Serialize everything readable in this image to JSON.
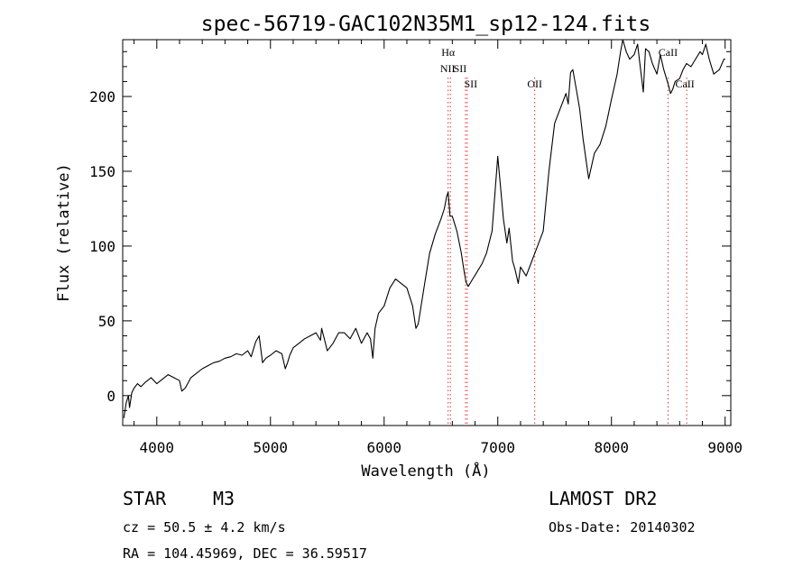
{
  "chart_data": {
    "type": "line",
    "title": "spec-56719-GAC102N35M1_sp12-124.fits",
    "xlabel": "Wavelength (Å)",
    "ylabel": "Flux (relative)",
    "xlim": [
      3700,
      9050
    ],
    "ylim": [
      -20,
      238
    ],
    "xticks": [
      4000,
      5000,
      6000,
      7000,
      8000,
      9000
    ],
    "yticks": [
      0,
      50,
      100,
      150,
      200
    ],
    "grid": false,
    "line_color": "#000000",
    "marker_color": "#e03030",
    "series": [
      {
        "name": "flux",
        "x": [
          3710,
          3730,
          3750,
          3760,
          3780,
          3800,
          3830,
          3860,
          3900,
          3950,
          4000,
          4050,
          4100,
          4150,
          4200,
          4220,
          4250,
          4300,
          4350,
          4400,
          4450,
          4500,
          4550,
          4600,
          4650,
          4700,
          4750,
          4800,
          4830,
          4870,
          4900,
          4930,
          4960,
          5000,
          5050,
          5100,
          5130,
          5150,
          5170,
          5200,
          5250,
          5300,
          5350,
          5400,
          5440,
          5450,
          5500,
          5550,
          5600,
          5650,
          5700,
          5750,
          5800,
          5850,
          5880,
          5900,
          5920,
          5950,
          6000,
          6050,
          6100,
          6150,
          6200,
          6250,
          6280,
          6300,
          6350,
          6400,
          6450,
          6500,
          6530,
          6550,
          6563,
          6580,
          6600,
          6640,
          6680,
          6700,
          6720,
          6740,
          6780,
          6820,
          6860,
          6900,
          6950,
          7000,
          7050,
          7080,
          7100,
          7130,
          7150,
          7180,
          7200,
          7250,
          7300,
          7350,
          7400,
          7450,
          7500,
          7550,
          7580,
          7600,
          7620,
          7640,
          7660,
          7690,
          7720,
          7750,
          7800,
          7850,
          7900,
          7950,
          8000,
          8050,
          8080,
          8100,
          8130,
          8160,
          8200,
          8230,
          8250,
          8280,
          8300,
          8330,
          8360,
          8400,
          8430,
          8460,
          8500,
          8520,
          8540,
          8560,
          8600,
          8630,
          8660,
          8700,
          8740,
          8780,
          8800,
          8830,
          8860,
          8900,
          8950,
          8990,
          9000
        ],
        "values": [
          -15,
          -5,
          0,
          -8,
          2,
          5,
          8,
          6,
          9,
          12,
          8,
          11,
          14,
          12,
          10,
          3,
          5,
          12,
          15,
          18,
          20,
          22,
          23,
          25,
          26,
          28,
          27,
          30,
          26,
          36,
          40,
          22,
          25,
          27,
          30,
          28,
          18,
          22,
          27,
          32,
          35,
          38,
          40,
          42,
          37,
          45,
          30,
          35,
          42,
          42,
          38,
          45,
          35,
          42,
          38,
          25,
          45,
          55,
          60,
          72,
          78,
          75,
          72,
          60,
          45,
          48,
          72,
          95,
          108,
          118,
          125,
          133,
          136,
          120,
          120,
          110,
          95,
          85,
          76,
          73,
          78,
          83,
          88,
          95,
          110,
          160,
          118,
          102,
          112,
          90,
          85,
          75,
          86,
          80,
          90,
          100,
          110,
          150,
          182,
          192,
          198,
          202,
          195,
          216,
          218,
          205,
          192,
          172,
          145,
          162,
          168,
          180,
          198,
          215,
          230,
          238,
          230,
          225,
          228,
          235,
          222,
          203,
          232,
          230,
          222,
          215,
          228,
          218,
          208,
          202,
          205,
          210,
          212,
          218,
          222,
          220,
          225,
          230,
          228,
          235,
          225,
          215,
          218,
          225,
          225
        ]
      }
    ],
    "annotations": [
      {
        "label": "Hα",
        "wavelength": 6563
      },
      {
        "label": "NII",
        "wavelength": 6583
      },
      {
        "label": "SII",
        "wavelength": 6716
      },
      {
        "label": "SII",
        "wavelength": 6731
      },
      {
        "label": "OII",
        "wavelength": 7325
      },
      {
        "label": "CaII",
        "wavelength": 8498
      },
      {
        "label": "CaII",
        "wavelength": 8662
      }
    ]
  },
  "info": {
    "object_type": "STAR",
    "subclass": "M3",
    "survey": "LAMOST DR2",
    "redshift": "cz = 50.5 ± 4.2 km/s",
    "obs_date": "Obs-Date: 20140302",
    "coords": "RA = 104.45969, DEC =  36.59517"
  }
}
